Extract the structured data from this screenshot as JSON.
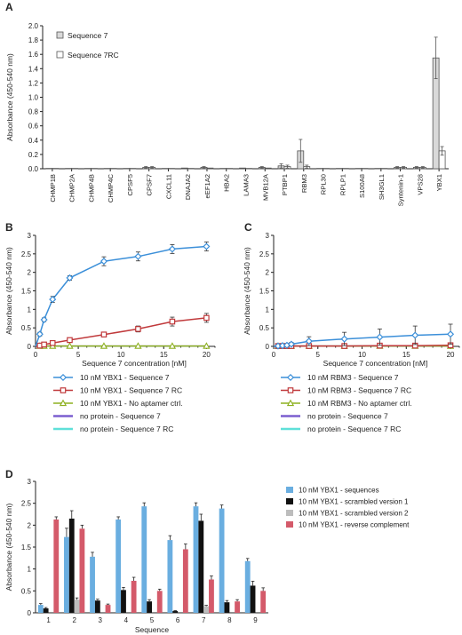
{
  "chart_data": [
    {
      "panel": "A",
      "type": "bar",
      "ylabel": "Absorbance (450-540 nm)",
      "ylim": [
        0,
        2.0
      ],
      "yticks": [
        "0.0",
        "0.2",
        "0.4",
        "0.6",
        "0.8",
        "1.0",
        "1.2",
        "1.4",
        "1.6",
        "1.8",
        "2.0"
      ],
      "categories": [
        "CHMP1B",
        "CHMP2A",
        "CHMP4B",
        "CHMP4C",
        "CPSF5",
        "CPSF7",
        "CXCL11",
        "DNAJA2",
        "eEF1A2",
        "HBA2",
        "LAMA3",
        "MVB12A",
        "PTBP1",
        "RBM3",
        "RPL30",
        "RPLP1",
        "S100A8",
        "SH3GL1",
        "Syntenin-1",
        "VPS28",
        "YBX1"
      ],
      "legend_position": "top-left",
      "series": [
        {
          "name": "Sequence 7",
          "color": "#d9d9d9",
          "values": [
            0.005,
            0.005,
            0.005,
            0.005,
            0.005,
            0.02,
            0.005,
            0.01,
            0.02,
            0.005,
            0.01,
            0.02,
            0.04,
            0.25,
            0.005,
            0.005,
            0.005,
            0.005,
            0.02,
            0.02,
            1.55
          ],
          "errors": [
            0.003,
            0.003,
            0.003,
            0.003,
            0.003,
            0.01,
            0.003,
            0.005,
            0.01,
            0.003,
            0.005,
            0.01,
            0.03,
            0.16,
            0.003,
            0.003,
            0.003,
            0.003,
            0.01,
            0.01,
            0.29
          ]
        },
        {
          "name": "Sequence 7RC",
          "color": "#ffffff",
          "values": [
            0.005,
            0.005,
            0.005,
            0.005,
            0.005,
            0.02,
            0.005,
            0.005,
            0.01,
            0.005,
            0.005,
            0.01,
            0.03,
            0.03,
            0.005,
            0.005,
            0.005,
            0.005,
            0.02,
            0.02,
            0.25
          ],
          "errors": [
            0.003,
            0.003,
            0.003,
            0.003,
            0.003,
            0.01,
            0.003,
            0.003,
            0.005,
            0.003,
            0.003,
            0.005,
            0.02,
            0.02,
            0.003,
            0.003,
            0.003,
            0.003,
            0.01,
            0.01,
            0.06
          ]
        }
      ]
    },
    {
      "panel": "B",
      "type": "line",
      "xlabel": "Sequence 7 concentration [nM]",
      "ylabel": "Absorbance (450-540 nm)",
      "xlim": [
        0,
        21
      ],
      "ylim": [
        0,
        3.0
      ],
      "xticks": [
        0,
        5,
        10,
        15,
        20
      ],
      "yticks": [
        "0",
        "0.5",
        "1",
        "1.5",
        "2",
        "2.5",
        "3"
      ],
      "series": [
        {
          "name": "10 nM YBX1 - Sequence 7",
          "color": "#3b8fd9",
          "marker": "diamond",
          "x": [
            0.5,
            1,
            2,
            4,
            8,
            12,
            16,
            20
          ],
          "y": [
            0.33,
            0.72,
            1.27,
            1.85,
            2.3,
            2.43,
            2.63,
            2.7
          ],
          "errors": [
            0.05,
            0.05,
            0.08,
            0.06,
            0.12,
            0.12,
            0.12,
            0.12
          ]
        },
        {
          "name": "10 nM YBX1 - Sequence 7 RC",
          "color": "#c0393b",
          "marker": "square",
          "x": [
            0.5,
            1,
            2,
            4,
            8,
            12,
            16,
            20
          ],
          "y": [
            0.02,
            0.05,
            0.09,
            0.17,
            0.32,
            0.47,
            0.67,
            0.77
          ],
          "errors": [
            0.02,
            0.02,
            0.03,
            0.04,
            0.06,
            0.08,
            0.12,
            0.12
          ]
        },
        {
          "name": "10 nM YBX1 - No aptamer ctrl.",
          "color": "#8db020",
          "marker": "triangle",
          "x": [
            0.5,
            1,
            2,
            4,
            8,
            12,
            16,
            20
          ],
          "y": [
            0.01,
            0.01,
            0.01,
            0.01,
            0.01,
            0.01,
            0.01,
            0.01
          ],
          "errors": [
            0,
            0,
            0,
            0,
            0,
            0,
            0,
            0
          ]
        },
        {
          "name": "no protein - Sequence 7",
          "color": "#7b5fcf",
          "marker": "none",
          "x": [
            0.5,
            1,
            2,
            4,
            8,
            12,
            16,
            20
          ],
          "y": [
            0.01,
            0.01,
            0.01,
            0.01,
            0.01,
            0.01,
            0.01,
            0.01
          ],
          "errors": [
            0,
            0,
            0,
            0,
            0,
            0,
            0,
            0
          ]
        },
        {
          "name": "no protein - Sequence 7 RC",
          "color": "#5fe0d9",
          "marker": "none",
          "x": [
            0.5,
            1,
            2,
            4,
            8,
            12,
            16,
            20
          ],
          "y": [
            0.005,
            0.005,
            0.005,
            0.005,
            0.005,
            0.005,
            0.005,
            0.005
          ],
          "errors": [
            0,
            0,
            0,
            0,
            0,
            0,
            0,
            0
          ]
        }
      ]
    },
    {
      "panel": "C",
      "type": "line",
      "xlabel": "Sequence 7 concentration [nM]",
      "ylabel": "Absorbance (450-540 nm)",
      "xlim": [
        0,
        21
      ],
      "ylim": [
        0,
        3.0
      ],
      "xticks": [
        0,
        5,
        10,
        15,
        20
      ],
      "yticks": [
        "0",
        "0.5",
        "1",
        "1.5",
        "2",
        "2.5",
        "3"
      ],
      "series": [
        {
          "name": "10 nM RBM3 - Sequence 7",
          "color": "#3b8fd9",
          "marker": "diamond",
          "x": [
            0.5,
            1,
            1.5,
            2,
            4,
            8,
            12,
            16,
            20
          ],
          "y": [
            0.01,
            0.02,
            0.03,
            0.06,
            0.14,
            0.2,
            0.25,
            0.3,
            0.33
          ],
          "errors": [
            0.01,
            0.02,
            0.03,
            0.05,
            0.12,
            0.18,
            0.22,
            0.25,
            0.27
          ]
        },
        {
          "name": "10 nM RBM3 - Sequence 7 RC",
          "color": "#c0393b",
          "marker": "square",
          "x": [
            0.5,
            1,
            1.5,
            2,
            4,
            8,
            12,
            16,
            20
          ],
          "y": [
            0.01,
            0.01,
            0.01,
            0.01,
            0.01,
            0.01,
            0.02,
            0.02,
            0.03
          ],
          "errors": [
            0,
            0,
            0,
            0,
            0,
            0,
            0,
            0,
            0
          ]
        },
        {
          "name": "10 nM RBM3 - No aptamer ctrl.",
          "color": "#8db020",
          "marker": "triangle",
          "x": [
            0.5,
            1,
            1.5,
            2,
            4,
            8,
            12,
            16,
            20
          ],
          "y": [
            0.01,
            0.01,
            0.01,
            0.01,
            0.01,
            0.01,
            0.01,
            0.01,
            0.01
          ],
          "errors": [
            0,
            0,
            0,
            0,
            0,
            0,
            0,
            0,
            0
          ]
        },
        {
          "name": "no protein - Sequence 7",
          "color": "#7b5fcf",
          "marker": "none",
          "x": [
            0.5,
            1,
            1.5,
            2,
            4,
            8,
            12,
            16,
            20
          ],
          "y": [
            0.01,
            0.01,
            0.01,
            0.01,
            0.01,
            0.01,
            0.01,
            0.01,
            0.01
          ],
          "errors": [
            0,
            0,
            0,
            0,
            0,
            0,
            0,
            0,
            0
          ]
        },
        {
          "name": "no protein - Sequence 7 RC",
          "color": "#5fe0d9",
          "marker": "none",
          "x": [
            0.5,
            1,
            1.5,
            2,
            4,
            8,
            12,
            16,
            20
          ],
          "y": [
            0.005,
            0.005,
            0.005,
            0.005,
            0.005,
            0.005,
            0.005,
            0.005,
            0.005
          ],
          "errors": [
            0,
            0,
            0,
            0,
            0,
            0,
            0,
            0,
            0
          ]
        }
      ]
    },
    {
      "panel": "D",
      "type": "bar",
      "xlabel": "Sequence",
      "ylabel": "Absorbance (450-540 nm)",
      "ylim": [
        0,
        3.0
      ],
      "yticks": [
        "0",
        "0.5",
        "1",
        "1.5",
        "2",
        "2.5",
        "3"
      ],
      "categories": [
        "1",
        "2",
        "3",
        "4",
        "5",
        "6",
        "7",
        "8",
        "9"
      ],
      "legend_position": "top-right",
      "series": [
        {
          "name": "10 nM YBX1 - sequences",
          "color": "#6aaee0",
          "values": [
            0.18,
            1.73,
            1.28,
            2.13,
            2.43,
            1.66,
            2.43,
            2.38,
            1.18
          ],
          "errors": [
            0.03,
            0.2,
            0.1,
            0.06,
            0.08,
            0.1,
            0.08,
            0.08,
            0.06
          ]
        },
        {
          "name": "10 nM YBX1 - scrambled version 1",
          "color": "#111111",
          "values": [
            0.1,
            2.15,
            0.28,
            0.52,
            0.26,
            0.04,
            2.1,
            0.24,
            0.62
          ],
          "errors": [
            0.02,
            0.18,
            0.03,
            0.06,
            0.04,
            0.01,
            0.15,
            0.04,
            0.1
          ]
        },
        {
          "name": "10 nM YBX1 - scrambled version 2",
          "color": "#bdbdbd",
          "values": [
            0.0,
            0.3,
            0.0,
            0.0,
            0.0,
            0.0,
            0.15,
            0.0,
            0.0
          ],
          "errors": [
            0,
            0.04,
            0,
            0,
            0,
            0,
            0.02,
            0,
            0
          ]
        },
        {
          "name": "10 nM YBX1 - reverse complement",
          "color": "#d45a6a",
          "values": [
            2.13,
            1.92,
            0.18,
            0.73,
            0.5,
            1.45,
            0.76,
            0.26,
            0.5
          ],
          "errors": [
            0.06,
            0.08,
            0.02,
            0.08,
            0.04,
            0.12,
            0.08,
            0.04,
            0.07
          ]
        }
      ]
    }
  ]
}
